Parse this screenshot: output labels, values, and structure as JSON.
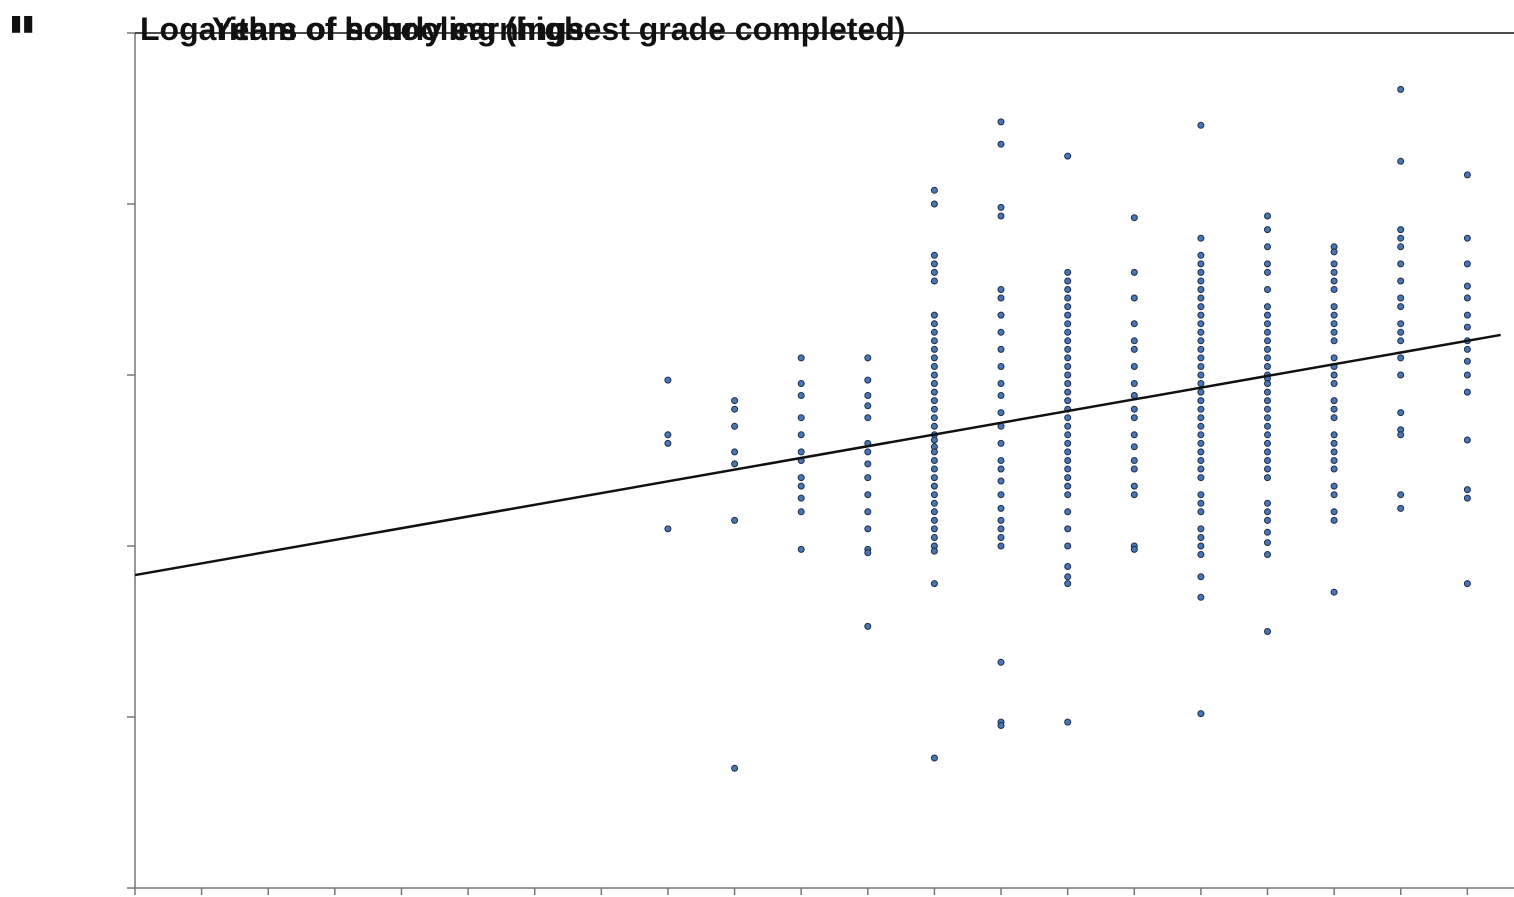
{
  "colors": {
    "point": "#4a76b3",
    "point_stroke": "#1a2d4d",
    "line": "#111111",
    "axis": "#777777",
    "text": "#111111"
  },
  "chart_data": {
    "type": "scatter",
    "title_overlap": [
      "Logarithm of hourly earnings",
      "Years of schooling (highest grade completed)"
    ],
    "corner_mark": "▮▮",
    "xlabel": "",
    "ylabel": "",
    "xlim": [
      0,
      20.7
    ],
    "ylim": [
      0,
      5
    ],
    "x_ticks": [
      0,
      1,
      2,
      3,
      4,
      5,
      6,
      7,
      8,
      9,
      10,
      11,
      12,
      13,
      14,
      15,
      16,
      17,
      18,
      19,
      20
    ],
    "y_ticks": [
      0,
      1,
      2,
      3,
      4,
      5
    ],
    "grid": false,
    "trendline": {
      "intercept": 1.83,
      "slope": 0.0685,
      "x_start": 0,
      "x_end": 20.5
    },
    "series": [
      {
        "points": [
          [
            8,
            2.97
          ],
          [
            8,
            2.65
          ],
          [
            8,
            2.6
          ],
          [
            8,
            2.1
          ],
          [
            9,
            2.85
          ],
          [
            9,
            2.8
          ],
          [
            9,
            2.7
          ],
          [
            9,
            2.55
          ],
          [
            9,
            2.48
          ],
          [
            9,
            2.15
          ],
          [
            9,
            0.7
          ],
          [
            10,
            3.1
          ],
          [
            10,
            2.95
          ],
          [
            10,
            2.88
          ],
          [
            10,
            2.75
          ],
          [
            10,
            2.65
          ],
          [
            10,
            2.55
          ],
          [
            10,
            2.5
          ],
          [
            10,
            2.4
          ],
          [
            10,
            2.35
          ],
          [
            10,
            2.28
          ],
          [
            10,
            2.2
          ],
          [
            10,
            1.98
          ],
          [
            11,
            3.1
          ],
          [
            11,
            2.97
          ],
          [
            11,
            2.88
          ],
          [
            11,
            2.82
          ],
          [
            11,
            2.75
          ],
          [
            11,
            2.6
          ],
          [
            11,
            2.55
          ],
          [
            11,
            2.48
          ],
          [
            11,
            2.4
          ],
          [
            11,
            2.3
          ],
          [
            11,
            2.2
          ],
          [
            11,
            2.1
          ],
          [
            11,
            1.98
          ],
          [
            11,
            1.96
          ],
          [
            11,
            1.53
          ],
          [
            12,
            4.08
          ],
          [
            12,
            4.0
          ],
          [
            12,
            3.7
          ],
          [
            12,
            3.65
          ],
          [
            12,
            3.6
          ],
          [
            12,
            3.55
          ],
          [
            12,
            3.35
          ],
          [
            12,
            3.3
          ],
          [
            12,
            3.25
          ],
          [
            12,
            3.2
          ],
          [
            12,
            3.15
          ],
          [
            12,
            3.1
          ],
          [
            12,
            3.05
          ],
          [
            12,
            3.0
          ],
          [
            12,
            2.95
          ],
          [
            12,
            2.9
          ],
          [
            12,
            2.85
          ],
          [
            12,
            2.8
          ],
          [
            12,
            2.75
          ],
          [
            12,
            2.7
          ],
          [
            12,
            2.65
          ],
          [
            12,
            2.62
          ],
          [
            12,
            2.58
          ],
          [
            12,
            2.55
          ],
          [
            12,
            2.5
          ],
          [
            12,
            2.45
          ],
          [
            12,
            2.4
          ],
          [
            12,
            2.35
          ],
          [
            12,
            2.3
          ],
          [
            12,
            2.25
          ],
          [
            12,
            2.2
          ],
          [
            12,
            2.15
          ],
          [
            12,
            2.1
          ],
          [
            12,
            2.05
          ],
          [
            12,
            2.0
          ],
          [
            12,
            1.97
          ],
          [
            12,
            1.78
          ],
          [
            12,
            0.76
          ],
          [
            13,
            4.48
          ],
          [
            13,
            4.35
          ],
          [
            13,
            3.98
          ],
          [
            13,
            3.93
          ],
          [
            13,
            3.5
          ],
          [
            13,
            3.45
          ],
          [
            13,
            3.35
          ],
          [
            13,
            3.25
          ],
          [
            13,
            3.15
          ],
          [
            13,
            3.05
          ],
          [
            13,
            2.95
          ],
          [
            13,
            2.88
          ],
          [
            13,
            2.78
          ],
          [
            13,
            2.7
          ],
          [
            13,
            2.6
          ],
          [
            13,
            2.5
          ],
          [
            13,
            2.45
          ],
          [
            13,
            2.38
          ],
          [
            13,
            2.3
          ],
          [
            13,
            2.22
          ],
          [
            13,
            2.15
          ],
          [
            13,
            2.1
          ],
          [
            13,
            2.05
          ],
          [
            13,
            2.0
          ],
          [
            13,
            1.32
          ],
          [
            13,
            0.97
          ],
          [
            13,
            0.95
          ],
          [
            14,
            4.28
          ],
          [
            14,
            3.6
          ],
          [
            14,
            3.55
          ],
          [
            14,
            3.5
          ],
          [
            14,
            3.45
          ],
          [
            14,
            3.4
          ],
          [
            14,
            3.35
          ],
          [
            14,
            3.3
          ],
          [
            14,
            3.25
          ],
          [
            14,
            3.2
          ],
          [
            14,
            3.15
          ],
          [
            14,
            3.1
          ],
          [
            14,
            3.05
          ],
          [
            14,
            3.0
          ],
          [
            14,
            2.95
          ],
          [
            14,
            2.9
          ],
          [
            14,
            2.85
          ],
          [
            14,
            2.8
          ],
          [
            14,
            2.75
          ],
          [
            14,
            2.7
          ],
          [
            14,
            2.65
          ],
          [
            14,
            2.6
          ],
          [
            14,
            2.55
          ],
          [
            14,
            2.5
          ],
          [
            14,
            2.45
          ],
          [
            14,
            2.4
          ],
          [
            14,
            2.35
          ],
          [
            14,
            2.3
          ],
          [
            14,
            2.2
          ],
          [
            14,
            2.1
          ],
          [
            14,
            2.0
          ],
          [
            14,
            1.88
          ],
          [
            14,
            1.82
          ],
          [
            14,
            1.78
          ],
          [
            14,
            0.97
          ],
          [
            15,
            3.92
          ],
          [
            15,
            3.6
          ],
          [
            15,
            3.45
          ],
          [
            15,
            3.3
          ],
          [
            15,
            3.2
          ],
          [
            15,
            3.15
          ],
          [
            15,
            3.05
          ],
          [
            15,
            2.95
          ],
          [
            15,
            2.88
          ],
          [
            15,
            2.8
          ],
          [
            15,
            2.75
          ],
          [
            15,
            2.65
          ],
          [
            15,
            2.58
          ],
          [
            15,
            2.5
          ],
          [
            15,
            2.45
          ],
          [
            15,
            2.35
          ],
          [
            15,
            2.3
          ],
          [
            15,
            2.0
          ],
          [
            15,
            1.98
          ],
          [
            16,
            4.46
          ],
          [
            16,
            3.8
          ],
          [
            16,
            3.7
          ],
          [
            16,
            3.65
          ],
          [
            16,
            3.6
          ],
          [
            16,
            3.55
          ],
          [
            16,
            3.5
          ],
          [
            16,
            3.45
          ],
          [
            16,
            3.4
          ],
          [
            16,
            3.35
          ],
          [
            16,
            3.3
          ],
          [
            16,
            3.25
          ],
          [
            16,
            3.2
          ],
          [
            16,
            3.15
          ],
          [
            16,
            3.1
          ],
          [
            16,
            3.05
          ],
          [
            16,
            3.0
          ],
          [
            16,
            2.95
          ],
          [
            16,
            2.9
          ],
          [
            16,
            2.85
          ],
          [
            16,
            2.8
          ],
          [
            16,
            2.75
          ],
          [
            16,
            2.7
          ],
          [
            16,
            2.65
          ],
          [
            16,
            2.6
          ],
          [
            16,
            2.55
          ],
          [
            16,
            2.5
          ],
          [
            16,
            2.45
          ],
          [
            16,
            2.4
          ],
          [
            16,
            2.3
          ],
          [
            16,
            2.25
          ],
          [
            16,
            2.2
          ],
          [
            16,
            2.1
          ],
          [
            16,
            2.05
          ],
          [
            16,
            2.0
          ],
          [
            16,
            1.95
          ],
          [
            16,
            1.82
          ],
          [
            16,
            1.7
          ],
          [
            16,
            1.02
          ],
          [
            17,
            3.93
          ],
          [
            17,
            3.85
          ],
          [
            17,
            3.75
          ],
          [
            17,
            3.65
          ],
          [
            17,
            3.6
          ],
          [
            17,
            3.5
          ],
          [
            17,
            3.4
          ],
          [
            17,
            3.35
          ],
          [
            17,
            3.3
          ],
          [
            17,
            3.25
          ],
          [
            17,
            3.2
          ],
          [
            17,
            3.15
          ],
          [
            17,
            3.1
          ],
          [
            17,
            3.05
          ],
          [
            17,
            3.0
          ],
          [
            17,
            2.98
          ],
          [
            17,
            2.95
          ],
          [
            17,
            2.9
          ],
          [
            17,
            2.85
          ],
          [
            17,
            2.8
          ],
          [
            17,
            2.75
          ],
          [
            17,
            2.7
          ],
          [
            17,
            2.65
          ],
          [
            17,
            2.6
          ],
          [
            17,
            2.55
          ],
          [
            17,
            2.5
          ],
          [
            17,
            2.45
          ],
          [
            17,
            2.4
          ],
          [
            17,
            2.25
          ],
          [
            17,
            2.2
          ],
          [
            17,
            2.15
          ],
          [
            17,
            2.08
          ],
          [
            17,
            2.02
          ],
          [
            17,
            1.95
          ],
          [
            17,
            1.5
          ],
          [
            18,
            3.75
          ],
          [
            18,
            3.72
          ],
          [
            18,
            3.65
          ],
          [
            18,
            3.6
          ],
          [
            18,
            3.55
          ],
          [
            18,
            3.5
          ],
          [
            18,
            3.4
          ],
          [
            18,
            3.35
          ],
          [
            18,
            3.3
          ],
          [
            18,
            3.25
          ],
          [
            18,
            3.2
          ],
          [
            18,
            3.1
          ],
          [
            18,
            3.05
          ],
          [
            18,
            3.0
          ],
          [
            18,
            2.95
          ],
          [
            18,
            2.85
          ],
          [
            18,
            2.8
          ],
          [
            18,
            2.75
          ],
          [
            18,
            2.65
          ],
          [
            18,
            2.6
          ],
          [
            18,
            2.55
          ],
          [
            18,
            2.5
          ],
          [
            18,
            2.45
          ],
          [
            18,
            2.35
          ],
          [
            18,
            2.3
          ],
          [
            18,
            2.2
          ],
          [
            18,
            2.15
          ],
          [
            18,
            1.73
          ],
          [
            19,
            4.67
          ],
          [
            19,
            4.25
          ],
          [
            19,
            3.85
          ],
          [
            19,
            3.8
          ],
          [
            19,
            3.75
          ],
          [
            19,
            3.65
          ],
          [
            19,
            3.55
          ],
          [
            19,
            3.45
          ],
          [
            19,
            3.4
          ],
          [
            19,
            3.3
          ],
          [
            19,
            3.25
          ],
          [
            19,
            3.2
          ],
          [
            19,
            3.1
          ],
          [
            19,
            3.0
          ],
          [
            19,
            2.78
          ],
          [
            19,
            2.68
          ],
          [
            19,
            2.65
          ],
          [
            19,
            2.3
          ],
          [
            19,
            2.22
          ],
          [
            20,
            4.17
          ],
          [
            20,
            3.8
          ],
          [
            20,
            3.65
          ],
          [
            20,
            3.52
          ],
          [
            20,
            3.45
          ],
          [
            20,
            3.35
          ],
          [
            20,
            3.28
          ],
          [
            20,
            3.2
          ],
          [
            20,
            3.15
          ],
          [
            20,
            3.08
          ],
          [
            20,
            3.0
          ],
          [
            20,
            2.9
          ],
          [
            20,
            2.62
          ],
          [
            20,
            2.33
          ],
          [
            20,
            2.28
          ],
          [
            20,
            1.78
          ]
        ]
      }
    ]
  }
}
